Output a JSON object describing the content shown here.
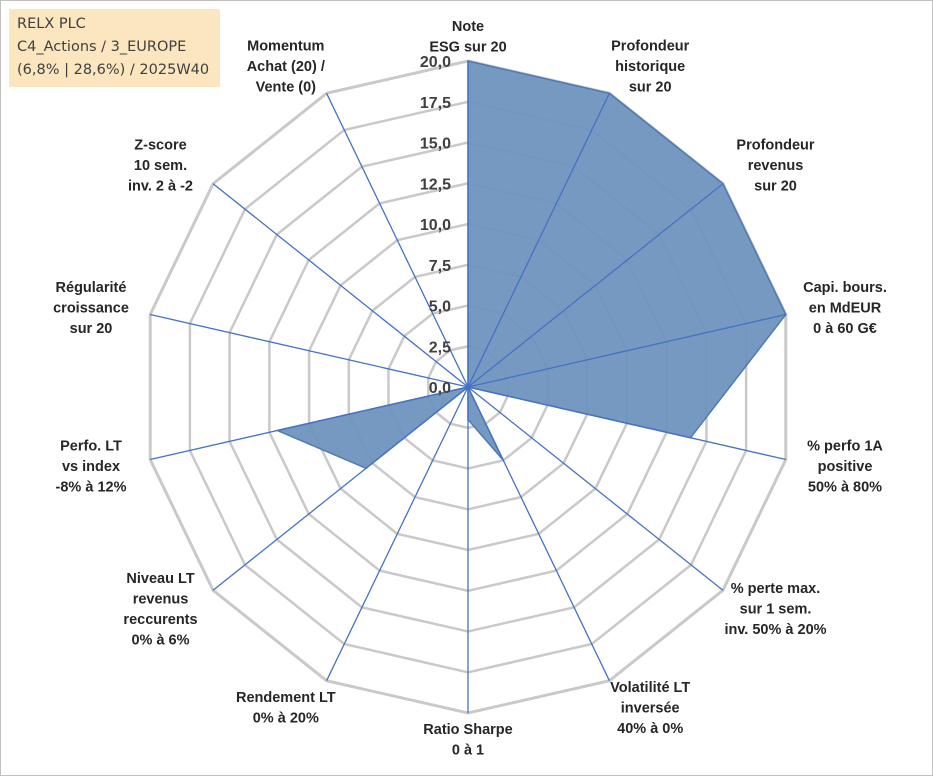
{
  "title_box": {
    "line1": "RELX PLC",
    "line2": "C4_Actions / 3_EUROPE",
    "line3": "(6,8% | 28,6%) / 2025W40"
  },
  "chart_data": {
    "type": "radar",
    "range": [
      0,
      20
    ],
    "tick_step": 2.5,
    "tick_labels": [
      "0,0",
      "2,5",
      "5,0",
      "7,5",
      "10,0",
      "12,5",
      "15,0",
      "17,5",
      "20,0"
    ],
    "categories": [
      [
        "Note",
        "ESG sur 20"
      ],
      [
        "Profondeur",
        "historique",
        "sur 20"
      ],
      [
        "Profondeur",
        "revenus",
        "sur 20"
      ],
      [
        "Capi. bours.",
        "en MdEUR",
        "0 à 60 G€"
      ],
      [
        "% perfo 1A",
        "positive",
        "50% à 80%"
      ],
      [
        "% perte max.",
        "sur 1 sem.",
        "inv. 50% à 20%"
      ],
      [
        "Volatilité LT",
        "inversée",
        "40% à 0%"
      ],
      [
        "Ratio Sharpe",
        "0 à 1"
      ],
      [
        "Rendement LT",
        "0% à 20%"
      ],
      [
        "Niveau LT",
        "revenus",
        "reccurents",
        "0% à 6%"
      ],
      [
        "Perfo. LT",
        "vs index",
        "-8% à 12%"
      ],
      [
        "Régularité",
        "croissance",
        "sur 20"
      ],
      [
        "Z-score",
        "10 sem.",
        "inv. 2 à -2"
      ],
      [
        "Momentum",
        "Achat (20) /",
        "Vente (0)"
      ]
    ],
    "series": [
      {
        "name": "RELX PLC",
        "values": [
          20,
          20,
          20,
          20,
          14,
          0,
          5,
          2,
          0,
          8,
          12,
          0,
          0,
          0
        ],
        "color": "#6f93bf",
        "stroke": "#4f7ab3"
      }
    ],
    "grid_color": "#c9c9c9",
    "axis_color": "#4472c4"
  }
}
